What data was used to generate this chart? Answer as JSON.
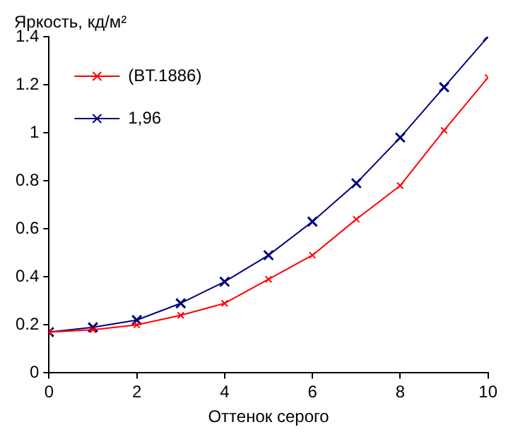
{
  "chart_data": {
    "type": "line",
    "ylabel": "Яркость, кд/м²",
    "xlabel": "Оттенок серого",
    "x": [
      0,
      1,
      2,
      3,
      4,
      5,
      6,
      7,
      8,
      9,
      10
    ],
    "series": [
      {
        "name": "(BT.1886)",
        "color": "#ff0000",
        "values": [
          0.17,
          0.18,
          0.2,
          0.24,
          0.29,
          0.39,
          0.49,
          0.64,
          0.78,
          1.01,
          1.23
        ]
      },
      {
        "name": "1,96",
        "color": "#000080",
        "values": [
          0.17,
          0.19,
          0.22,
          0.29,
          0.38,
          0.49,
          0.63,
          0.79,
          0.98,
          1.19,
          1.4
        ]
      }
    ],
    "xlim": [
      0,
      10
    ],
    "xticks": [
      0,
      2,
      4,
      6,
      8,
      10
    ],
    "ylim": [
      0,
      1.4
    ],
    "yticks": [
      0,
      0.2,
      0.4,
      0.6,
      0.8,
      1,
      1.2,
      1.4
    ],
    "grid": false,
    "legend": "top left",
    "marker": "cross",
    "line_style": "solid"
  }
}
